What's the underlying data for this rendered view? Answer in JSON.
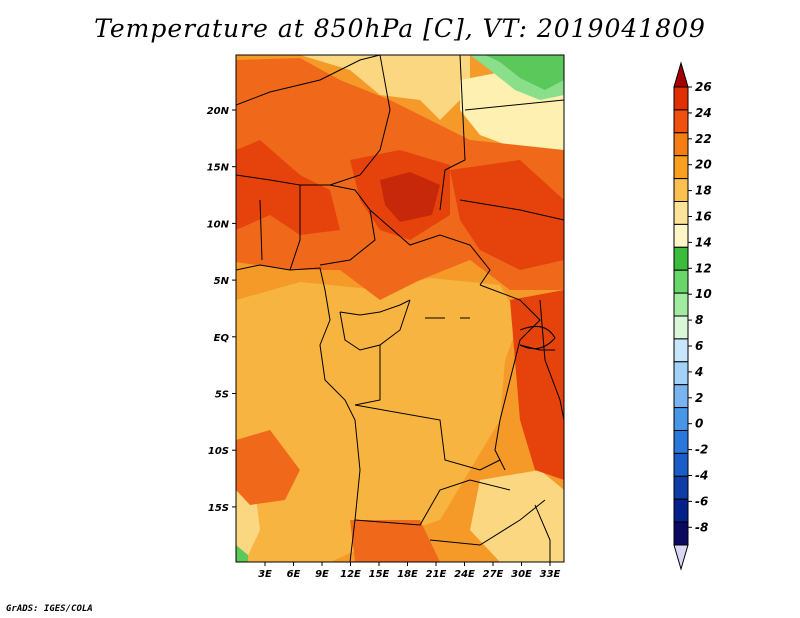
{
  "title": "Temperature at 850hPa [C], VT: 2019041809",
  "footer": "GrADS: IGES/COLA",
  "map": {
    "lon_labels": [
      "3E",
      "6E",
      "9E",
      "12E",
      "15E",
      "18E",
      "21E",
      "24E",
      "27E",
      "30E",
      "33E"
    ],
    "lat_labels": [
      "20N",
      "15N",
      "10N",
      "5N",
      "EQ",
      "5S",
      "10S",
      "15S"
    ]
  },
  "colorbar": {
    "labels": [
      "26",
      "24",
      "22",
      "20",
      "18",
      "16",
      "14",
      "12",
      "10",
      "8",
      "6",
      "4",
      "2",
      "0",
      "-2",
      "-4",
      "-6",
      "-8"
    ],
    "colors": [
      "#a50000",
      "#e03000",
      "#f05010",
      "#f57e14",
      "#f9a020",
      "#fbc050",
      "#fde39a",
      "#fef5c8",
      "#3cbc3c",
      "#6ad66a",
      "#a2eca2",
      "#d9f7d9",
      "#c8e6fa",
      "#a2d2f7",
      "#78b4ef",
      "#4896e6",
      "#2a78db",
      "#1a5cc8",
      "#0e3da8",
      "#04208a",
      "#0a0a60",
      "#d8d8f5"
    ]
  },
  "palette": {
    "t24": "#e6420c",
    "t22": "#f0691a",
    "t20": "#f59a28",
    "t18": "#f8b440",
    "t16": "#fbd782",
    "t14": "#fef0b0",
    "t12": "#5ac85a",
    "t10": "#8ae08a"
  }
}
